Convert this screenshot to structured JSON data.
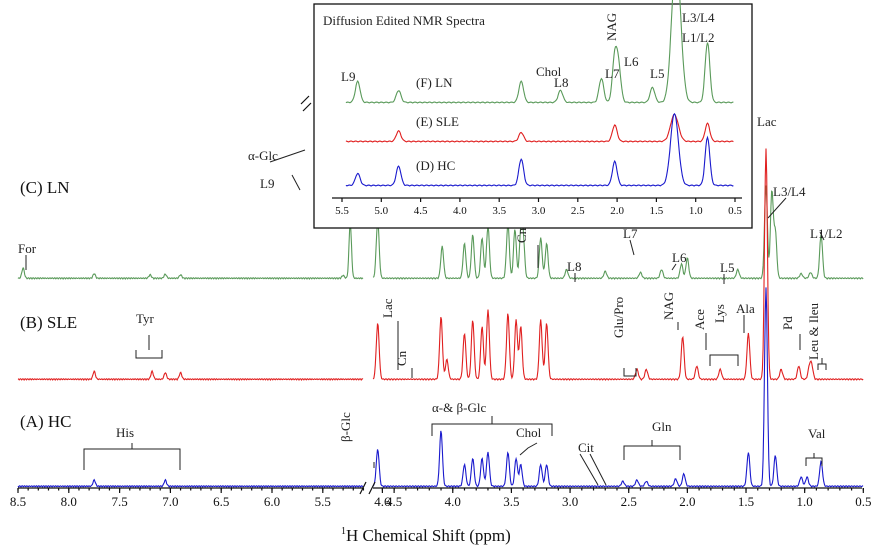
{
  "chart_data": [
    {
      "type": "line",
      "title": "",
      "xlabel_prefix": "1",
      "xlabel": "H Chemical Shift (ppm)",
      "xlim": [
        8.5,
        0.5
      ],
      "x_ticks": [
        8.5,
        8.0,
        7.5,
        7.0,
        6.5,
        6.0,
        5.5,
        4.6,
        4.5,
        4.0,
        3.5,
        3.0,
        2.5,
        2.0,
        1.5,
        1.0,
        0.5
      ],
      "x_tick_labels": [
        "8.5",
        "8.0",
        "7.5",
        "7.0",
        "6.5",
        "6.0",
        "5.5",
        "4.6",
        "4.5",
        "4.0",
        "3.5",
        "3.0",
        "2.5",
        "2.0",
        "1.5",
        "1.0",
        "0.5"
      ],
      "axis_break": [
        5.1,
        4.68
      ],
      "grid": false,
      "series": [
        {
          "name": "(C) LN",
          "color": "#5a9a5a",
          "peaks": [
            {
              "x": 8.45,
              "h": 0.18
            },
            {
              "x": 7.75,
              "h": 0.08
            },
            {
              "x": 7.2,
              "h": 0.06
            },
            {
              "x": 7.05,
              "h": 0.07
            },
            {
              "x": 6.9,
              "h": 0.06
            },
            {
              "x": 5.3,
              "h": 0.05
            },
            {
              "x": 5.23,
              "h": 0.95
            },
            {
              "x": 4.85,
              "h": 3.5
            },
            {
              "x": 4.64,
              "h": 1.0
            },
            {
              "x": 4.09,
              "h": 0.55
            },
            {
              "x": 3.9,
              "h": 0.6
            },
            {
              "x": 3.83,
              "h": 0.75
            },
            {
              "x": 3.75,
              "h": 0.7
            },
            {
              "x": 3.7,
              "h": 0.9
            },
            {
              "x": 3.53,
              "h": 0.95
            },
            {
              "x": 3.47,
              "h": 0.85
            },
            {
              "x": 3.42,
              "h": 0.75
            },
            {
              "x": 3.4,
              "h": 0.7
            },
            {
              "x": 3.25,
              "h": 0.7
            },
            {
              "x": 3.2,
              "h": 0.6
            },
            {
              "x": 3.03,
              "h": 0.15
            },
            {
              "x": 2.7,
              "h": 0.12
            },
            {
              "x": 2.4,
              "h": 0.1
            },
            {
              "x": 2.22,
              "h": 0.15
            },
            {
              "x": 2.05,
              "h": 0.25
            },
            {
              "x": 2.0,
              "h": 0.35
            },
            {
              "x": 1.57,
              "h": 0.15
            },
            {
              "x": 1.33,
              "h": 1.6
            },
            {
              "x": 1.28,
              "h": 1.5
            },
            {
              "x": 1.25,
              "h": 0.8
            },
            {
              "x": 1.03,
              "h": 0.08
            },
            {
              "x": 0.95,
              "h": 0.1
            },
            {
              "x": 0.86,
              "h": 0.75
            }
          ],
          "labels": [
            {
              "text": "For",
              "x": 8.45
            },
            {
              "text": "L9",
              "x": 5.23
            },
            {
              "text": "Cn",
              "x": 3.03
            },
            {
              "text": "L8",
              "x": 2.7
            },
            {
              "text": "L7",
              "x": 2.22
            },
            {
              "text": "L6",
              "x": 2.02
            },
            {
              "text": "L5",
              "x": 1.57
            },
            {
              "text": "L3/L4",
              "x": 1.25
            },
            {
              "text": "L1/L2",
              "x": 0.86
            },
            {
              "text": "α-Glc",
              "x": 4.85
            }
          ]
        },
        {
          "name": "(B) SLE",
          "color": "#e02020",
          "peaks": [
            {
              "x": 7.75,
              "h": 0.12
            },
            {
              "x": 7.18,
              "h": 0.12
            },
            {
              "x": 7.05,
              "h": 0.1
            },
            {
              "x": 6.9,
              "h": 0.1
            },
            {
              "x": 4.64,
              "h": 0.85
            },
            {
              "x": 4.1,
              "h": 0.95
            },
            {
              "x": 4.05,
              "h": 0.3
            },
            {
              "x": 3.9,
              "h": 0.7
            },
            {
              "x": 3.83,
              "h": 0.9
            },
            {
              "x": 3.75,
              "h": 0.8
            },
            {
              "x": 3.7,
              "h": 1.05
            },
            {
              "x": 3.53,
              "h": 1.0
            },
            {
              "x": 3.46,
              "h": 0.9
            },
            {
              "x": 3.42,
              "h": 0.8
            },
            {
              "x": 3.25,
              "h": 0.9
            },
            {
              "x": 3.2,
              "h": 0.85
            },
            {
              "x": 2.43,
              "h": 0.15
            },
            {
              "x": 2.35,
              "h": 0.15
            },
            {
              "x": 2.04,
              "h": 0.65
            },
            {
              "x": 1.92,
              "h": 0.2
            },
            {
              "x": 1.72,
              "h": 0.15
            },
            {
              "x": 1.48,
              "h": 0.7
            },
            {
              "x": 1.33,
              "h": 3.5
            },
            {
              "x": 1.2,
              "h": 0.15
            },
            {
              "x": 1.05,
              "h": 0.2
            },
            {
              "x": 0.96,
              "h": 0.18
            },
            {
              "x": 0.94,
              "h": 0.2
            }
          ],
          "labels": [
            {
              "text": "Tyr",
              "x": 7.04
            },
            {
              "text": "Lac",
              "x": 4.1
            },
            {
              "text": "Cn",
              "x": 4.04
            },
            {
              "text": "Glu/Pro",
              "x": 2.38
            },
            {
              "text": "NAG",
              "x": 2.03
            },
            {
              "text": "Ace",
              "x": 1.92
            },
            {
              "text": "Lys",
              "x": 1.8
            },
            {
              "text": "Ala",
              "x": 1.48
            },
            {
              "text": "Pd",
              "x": 1.18
            },
            {
              "text": "Leu & Ileu",
              "x": 0.95
            }
          ]
        },
        {
          "name": "(A) HC",
          "color": "#1a1acd",
          "peaks": [
            {
              "x": 7.75,
              "h": 0.1
            },
            {
              "x": 7.05,
              "h": 0.1
            },
            {
              "x": 4.78,
              "h": 1.0
            },
            {
              "x": 4.64,
              "h": 0.6
            },
            {
              "x": 4.1,
              "h": 0.9
            },
            {
              "x": 3.9,
              "h": 0.35
            },
            {
              "x": 3.83,
              "h": 0.45
            },
            {
              "x": 3.75,
              "h": 0.45
            },
            {
              "x": 3.7,
              "h": 0.55
            },
            {
              "x": 3.53,
              "h": 0.55
            },
            {
              "x": 3.46,
              "h": 0.45
            },
            {
              "x": 3.42,
              "h": 0.35
            },
            {
              "x": 3.25,
              "h": 0.35
            },
            {
              "x": 3.2,
              "h": 0.35
            },
            {
              "x": 2.55,
              "h": 0.08
            },
            {
              "x": 2.43,
              "h": 0.1
            },
            {
              "x": 2.35,
              "h": 0.08
            },
            {
              "x": 2.1,
              "h": 0.12
            },
            {
              "x": 2.03,
              "h": 0.2
            },
            {
              "x": 1.48,
              "h": 0.55
            },
            {
              "x": 1.33,
              "h": 3.2
            },
            {
              "x": 1.25,
              "h": 0.5
            },
            {
              "x": 1.03,
              "h": 0.15
            },
            {
              "x": 0.98,
              "h": 0.15
            },
            {
              "x": 0.86,
              "h": 0.4
            }
          ],
          "labels": [
            {
              "text": "His",
              "x": 7.4
            },
            {
              "text": "β-Glc",
              "x": 4.64
            },
            {
              "text": "α-& β-Glc",
              "x": 3.55
            },
            {
              "text": "Chol",
              "x": 3.2
            },
            {
              "text": "Cit",
              "x": 2.6
            },
            {
              "text": "Gln",
              "x": 2.27
            },
            {
              "text": "Val",
              "x": 1.0
            }
          ]
        }
      ]
    },
    {
      "type": "line",
      "title": "Diffusion Edited NMR Spectra",
      "xlim": [
        5.5,
        0.5
      ],
      "x_tick_labels": [
        "5.5",
        "5.0",
        "4.5",
        "4.0",
        "3.5",
        "3.0",
        "2.5",
        "2.0",
        "1.5",
        "1.0",
        "0.5"
      ],
      "series": [
        {
          "name": "(F) LN",
          "color": "#5a9a5a",
          "peaks": [
            {
              "x": 5.3,
              "h": 0.35
            },
            {
              "x": 4.78,
              "h": 0.2
            },
            {
              "x": 3.22,
              "h": 0.35
            },
            {
              "x": 2.72,
              "h": 0.2
            },
            {
              "x": 2.2,
              "h": 0.4
            },
            {
              "x": 2.03,
              "h": 0.75
            },
            {
              "x": 1.98,
              "h": 0.55
            },
            {
              "x": 1.55,
              "h": 0.25
            },
            {
              "x": 1.27,
              "h": 1.5
            },
            {
              "x": 1.22,
              "h": 1.2
            },
            {
              "x": 0.85,
              "h": 1.0
            }
          ],
          "labels": [
            {
              "text": "L9",
              "x": 5.3
            },
            {
              "text": "Chol",
              "x": 3.22
            },
            {
              "text": "L8",
              "x": 2.72
            },
            {
              "text": "L7",
              "x": 2.2
            },
            {
              "text": "NAG",
              "x": 2.03
            },
            {
              "text": "L6",
              "x": 1.9
            },
            {
              "text": "L5",
              "x": 1.55
            },
            {
              "text": "L3/L4",
              "x": 1.2
            },
            {
              "text": "L1/L2",
              "x": 1.1
            }
          ]
        },
        {
          "name": "(E) SLE",
          "color": "#e02020",
          "peaks": [
            {
              "x": 4.78,
              "h": 0.35
            },
            {
              "x": 3.22,
              "h": 0.3
            },
            {
              "x": 2.03,
              "h": 0.55
            },
            {
              "x": 1.27,
              "h": 0.9
            },
            {
              "x": 0.85,
              "h": 0.6
            }
          ],
          "labels": []
        },
        {
          "name": "(D) HC",
          "color": "#1a1acd",
          "peaks": [
            {
              "x": 5.3,
              "h": 0.25
            },
            {
              "x": 4.78,
              "h": 0.4
            },
            {
              "x": 3.22,
              "h": 0.55
            },
            {
              "x": 2.03,
              "h": 0.5
            },
            {
              "x": 1.27,
              "h": 1.5
            },
            {
              "x": 0.85,
              "h": 1.0
            }
          ],
          "labels": []
        }
      ]
    }
  ]
}
